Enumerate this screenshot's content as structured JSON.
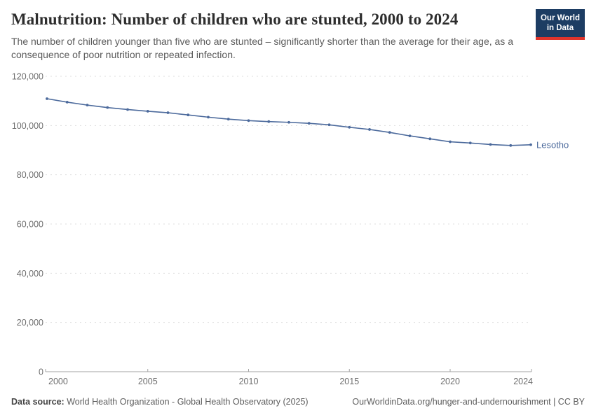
{
  "header": {
    "title": "Malnutrition: Number of children who are stunted, 2000 to 2024",
    "subtitle": "The number of children younger than five who are stunted – significantly shorter than the average for their age, as a consequence of poor nutrition or repeated infection.",
    "logo": {
      "line1": "Our World",
      "line2": "in Data",
      "bg_color": "#1d3d63",
      "accent_color": "#e0342b"
    }
  },
  "chart_data": {
    "type": "line",
    "title": "Malnutrition: Number of children who are stunted, 2000 to 2024",
    "xlabel": "",
    "ylabel": "",
    "x": [
      2000,
      2001,
      2002,
      2003,
      2004,
      2005,
      2006,
      2007,
      2008,
      2009,
      2010,
      2011,
      2012,
      2013,
      2014,
      2015,
      2016,
      2017,
      2018,
      2019,
      2020,
      2021,
      2022,
      2023,
      2024
    ],
    "series": [
      {
        "name": "Lesotho",
        "color": "#4C6A9C",
        "values": [
          110900,
          109500,
          108300,
          107300,
          106500,
          105800,
          105200,
          104300,
          103400,
          102600,
          102000,
          101600,
          101300,
          100900,
          100300,
          99300,
          98400,
          97200,
          95800,
          94600,
          93400,
          92900,
          92300,
          91900,
          92200
        ]
      }
    ],
    "x_ticks": [
      2000,
      2005,
      2010,
      2015,
      2020,
      2024
    ],
    "y_ticks": [
      0,
      20000,
      40000,
      60000,
      80000,
      100000,
      120000
    ],
    "xlim": [
      2000,
      2024
    ],
    "ylim": [
      0,
      120000
    ],
    "grid": "horizontal-dashed",
    "legend": "end-of-line-label",
    "colors": {
      "gridline": "#dedede",
      "axis": "#a3a3a3",
      "tick_label": "#6e6e6e"
    }
  },
  "footer": {
    "source_label": "Data source:",
    "source_text": "World Health Organization - Global Health Observatory (2025)",
    "link_text": "OurWorldinData.org/hunger-and-undernourishment | CC BY"
  }
}
